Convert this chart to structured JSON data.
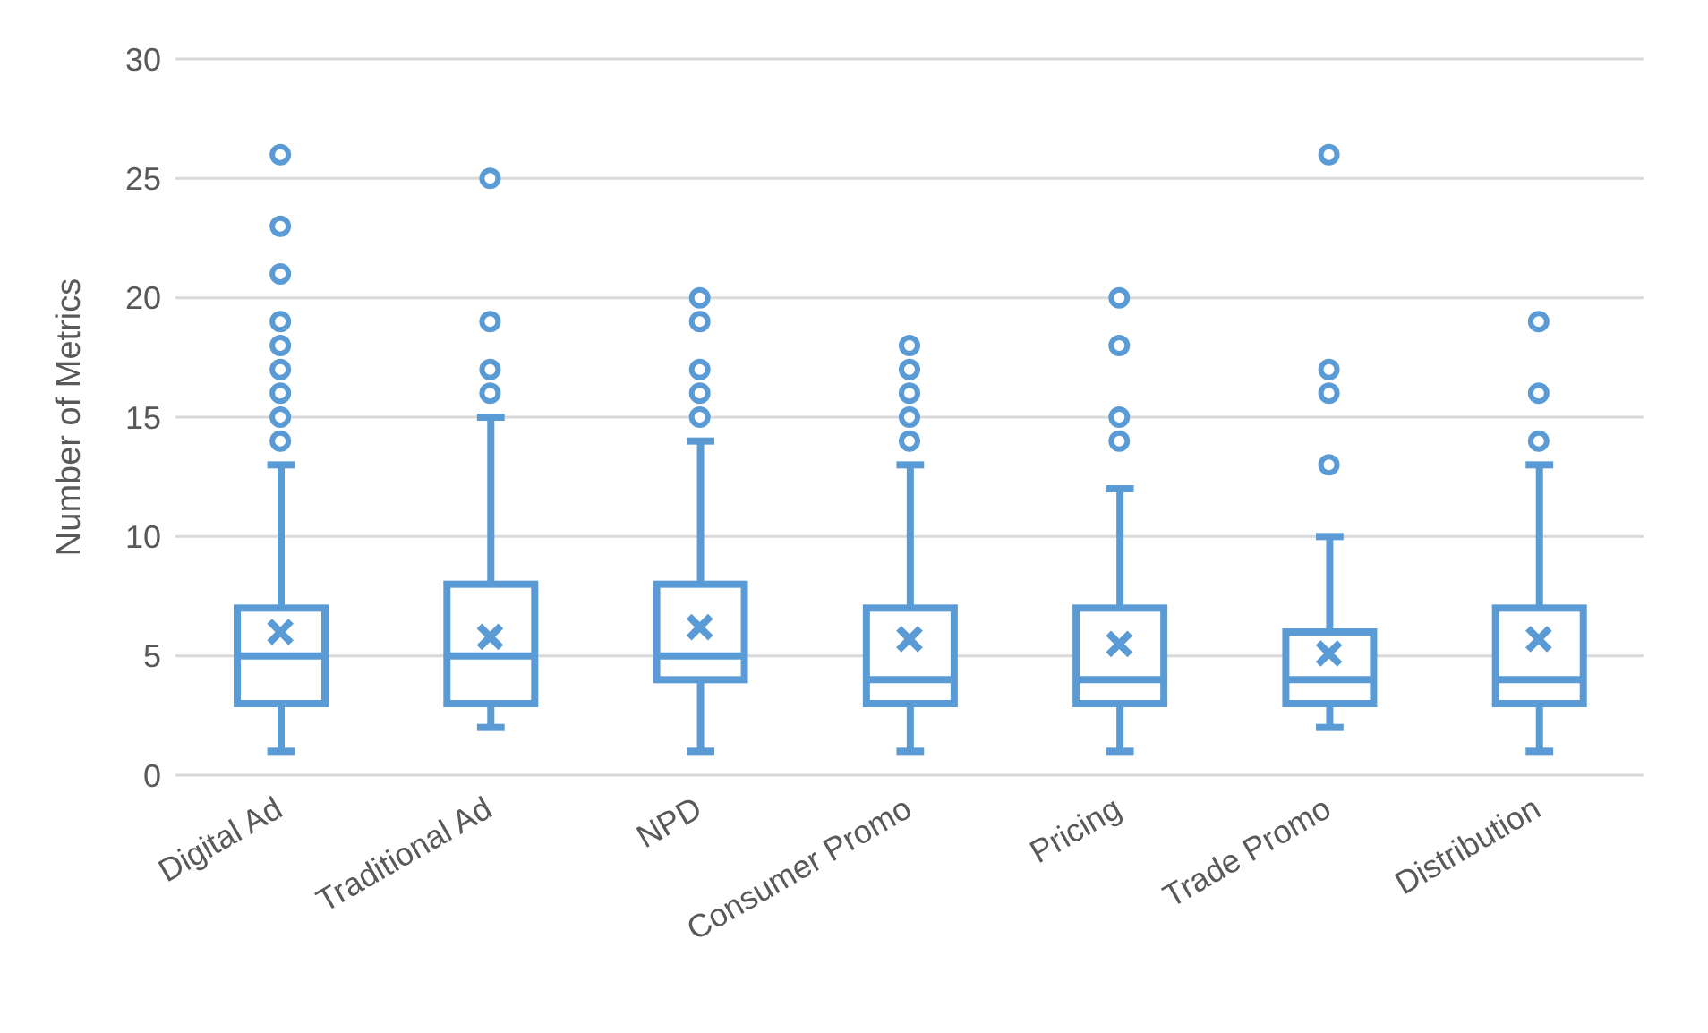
{
  "chart_data": {
    "type": "box",
    "ylabel": "Number of Metrics",
    "categories": [
      "Digital Ad",
      "Traditional Ad",
      "NPD",
      "Consumer Promo",
      "Pricing",
      "Trade Promo",
      "Distribution"
    ],
    "color": "#5b9bd5",
    "ylim": [
      0,
      30
    ],
    "yticks": [
      0,
      5,
      10,
      15,
      20,
      25,
      30
    ],
    "grid": "y",
    "legend": false,
    "boxes": [
      {
        "low": 1,
        "q1": 3,
        "median": 5,
        "q3": 7,
        "high": 13,
        "mean": 6,
        "outliers": [
          14,
          15,
          16,
          17,
          18,
          19,
          21,
          23,
          26
        ]
      },
      {
        "low": 2,
        "q1": 3,
        "median": 5,
        "q3": 8,
        "high": 15,
        "mean": 5.8,
        "outliers": [
          16,
          17,
          19,
          25
        ]
      },
      {
        "low": 1,
        "q1": 4,
        "median": 5,
        "q3": 8,
        "high": 14,
        "mean": 6.2,
        "outliers": [
          15,
          16,
          17,
          19,
          20
        ]
      },
      {
        "low": 1,
        "q1": 3,
        "median": 4,
        "q3": 7,
        "high": 13,
        "mean": 5.7,
        "outliers": [
          14,
          15,
          16,
          17,
          18
        ]
      },
      {
        "low": 1,
        "q1": 3,
        "median": 4,
        "q3": 7,
        "high": 12,
        "mean": 5.5,
        "outliers": [
          14,
          15,
          18,
          20
        ]
      },
      {
        "low": 2,
        "q1": 3,
        "median": 4,
        "q3": 6,
        "high": 10,
        "mean": 5.1,
        "outliers": [
          13,
          16,
          17,
          26
        ]
      },
      {
        "low": 1,
        "q1": 3,
        "median": 4,
        "q3": 7,
        "high": 13,
        "mean": 5.7,
        "outliers": [
          14,
          16,
          19
        ]
      }
    ]
  }
}
